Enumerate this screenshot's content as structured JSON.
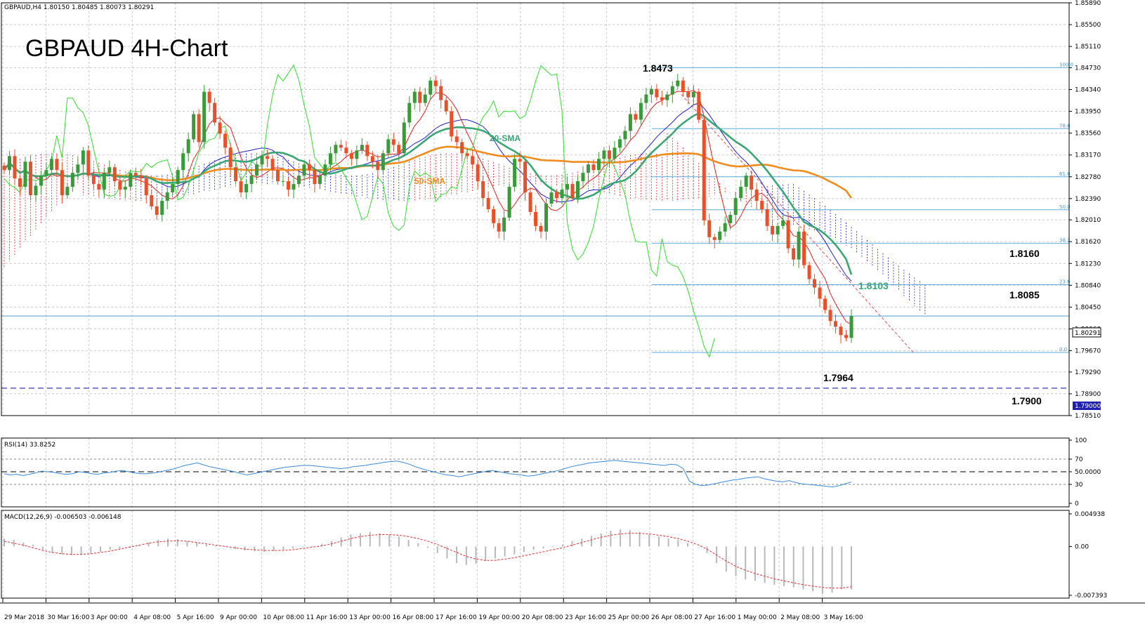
{
  "header": {
    "symbol_info": "GBPAUD,H4  1.80150 1.80485 1.80073 1.80291",
    "title": "GBPAUD 4H-Chart"
  },
  "colors": {
    "bull": "#3a9a3a",
    "bear": "#e8502a",
    "sma20": "#3aa675",
    "sma50": "#f08c1e",
    "tenkan": "#e02020",
    "kijun": "#2020d0",
    "chikou": "#33dd33",
    "fib": "#5aaedc",
    "rsi": "#3a8ad6",
    "macd_hist": "#b8b8b8",
    "macd_signal": "#e03030",
    "level_1790": "#2020b0"
  },
  "annotations": {
    "high": "1.8473",
    "low": "1.7964",
    "sma20_value": "1.8103",
    "level_a": "1.8160",
    "level_b": "1.8085",
    "level_c": "1.7900",
    "sma20_label": "20-SMA",
    "sma50_label": "50-SMA",
    "current_price_box": "1.80291",
    "support_box": "1.79000"
  },
  "fib_levels": [
    {
      "label": "100.0",
      "price": 1.8473
    },
    {
      "label": "78.6",
      "price": 1.8364
    },
    {
      "label": "61.6",
      "price": 1.8278
    },
    {
      "label": "50.0",
      "price": 1.8219
    },
    {
      "label": "38.2",
      "price": 1.8159
    },
    {
      "label": "23.6",
      "price": 1.8085
    },
    {
      "label": "0.0",
      "price": 1.7964
    }
  ],
  "chart_data": {
    "type": "candlestick",
    "symbol": "GBPAUD",
    "timeframe": "H4",
    "y_axis": {
      "range": [
        1.7851,
        1.8589
      ],
      "ticks": [
        "1.85890",
        "1.85500",
        "1.85110",
        "1.84730",
        "1.84340",
        "1.83950",
        "1.83560",
        "1.83170",
        "1.82780",
        "1.82390",
        "1.82010",
        "1.81620",
        "1.81230",
        "1.80840",
        "1.80450",
        "1.80060",
        "1.79670",
        "1.79290",
        "1.78900",
        "1.78510"
      ]
    },
    "x_labels": [
      "29 Mar 2018",
      "30 Mar 16:00",
      "3 Apr 00:00",
      "4 Apr 08:00",
      "5 Apr 16:00",
      "9 Apr 00:00",
      "10 Apr 08:00",
      "11 Apr 16:00",
      "13 Apr 00:00",
      "16 Apr 08:00",
      "17 Apr 16:00",
      "19 Apr 00:00",
      "20 Apr 08:00",
      "23 Apr 16:00",
      "25 Apr 00:00",
      "26 Apr 08:00",
      "27 Apr 16:00",
      "1 May 00:00",
      "2 May 08:00",
      "3 May 16:00"
    ],
    "closes": [
      1.829,
      1.8315,
      1.8275,
      1.826,
      1.8305,
      1.8245,
      1.8262,
      1.828,
      1.829,
      1.831,
      1.829,
      1.8245,
      1.826,
      1.8285,
      1.83,
      1.8325,
      1.828,
      1.8265,
      1.8255,
      1.8285,
      1.8295,
      1.827,
      1.8255,
      1.826,
      1.8285,
      1.828,
      1.8275,
      1.8245,
      1.8225,
      1.821,
      1.8235,
      1.825,
      1.8265,
      1.829,
      1.832,
      1.8345,
      1.839,
      1.834,
      1.843,
      1.841,
      1.8375,
      1.8355,
      1.833,
      1.8295,
      1.827,
      1.825,
      1.8265,
      1.828,
      1.83,
      1.8315,
      1.831,
      1.829,
      1.827,
      1.827,
      1.8255,
      1.8265,
      1.828,
      1.83,
      1.829,
      1.8265,
      1.828,
      1.83,
      1.832,
      1.8335,
      1.833,
      1.832,
      1.831,
      1.8325,
      1.8335,
      1.8315,
      1.8305,
      1.829,
      1.832,
      1.8345,
      1.8335,
      1.832,
      1.8375,
      1.841,
      1.843,
      1.841,
      1.8425,
      1.845,
      1.844,
      1.8415,
      1.8395,
      1.835,
      1.834,
      1.832,
      1.8315,
      1.83,
      1.827,
      1.824,
      1.822,
      1.8195,
      1.818,
      1.8205,
      1.826,
      1.831,
      1.8305,
      1.825,
      1.8215,
      1.819,
      1.818,
      1.823,
      1.825,
      1.824,
      1.8255,
      1.8265,
      1.824,
      1.827,
      1.8285,
      1.83,
      1.829,
      1.831,
      1.8325,
      1.831,
      1.833,
      1.8345,
      1.836,
      1.839,
      1.838,
      1.841,
      1.8425,
      1.8435,
      1.842,
      1.8415,
      1.8425,
      1.844,
      1.845,
      1.843,
      1.842,
      1.843,
      1.838,
      1.82,
      1.817,
      1.8165,
      1.818,
      1.8195,
      1.821,
      1.824,
      1.826,
      1.828,
      1.8255,
      1.8235,
      1.822,
      1.819,
      1.8175,
      1.819,
      1.82,
      1.815,
      1.813,
      1.818,
      1.812,
      1.8095,
      1.808,
      1.806,
      1.804,
      1.802,
      1.801,
      1.7995,
      1.799,
      1.8029
    ],
    "moving_averages": {
      "sma20_end": 1.8103,
      "sma50_end": 1.824
    },
    "indicators": {
      "rsi": {
        "label": "RSI(14) 33.8252",
        "ticks": [
          "100",
          "70",
          "50.0000",
          "30",
          "0"
        ],
        "values": [
          47,
          45,
          46,
          44,
          46,
          48,
          51,
          50,
          49,
          47,
          46,
          47,
          50,
          49,
          47,
          46,
          48,
          49,
          51,
          52,
          50,
          48,
          47,
          47,
          48,
          50,
          52,
          54,
          57,
          60,
          62,
          64,
          61,
          58,
          56,
          54,
          52,
          50,
          47,
          45,
          47,
          49,
          51,
          53,
          55,
          57,
          58,
          59,
          60,
          60,
          59,
          58,
          57,
          56,
          55,
          56,
          58,
          59,
          60,
          62,
          63,
          65,
          66,
          67,
          65,
          62,
          58,
          55,
          52,
          50,
          47,
          45,
          44,
          42,
          44,
          46,
          48,
          50,
          52,
          51,
          49,
          47,
          46,
          45,
          43,
          44,
          46,
          48,
          50,
          52,
          55,
          58,
          60,
          62,
          64,
          65,
          66,
          67,
          68,
          67,
          66,
          65,
          64,
          63,
          62,
          61,
          60,
          62,
          61,
          55,
          35,
          30,
          28,
          29,
          31,
          33,
          35,
          37,
          38,
          40,
          41,
          42,
          39,
          37,
          35,
          34,
          36,
          33,
          31,
          30,
          29,
          28,
          27,
          26,
          28,
          31,
          33.8252
        ]
      },
      "macd": {
        "label": "MACD(12,26,9) -0.006503 -0.006148",
        "ticks": [
          "0.004938",
          "0.00",
          "-0.007393"
        ],
        "histogram": [
          0.0012,
          0.001,
          0.0006,
          0.0003,
          -0.0005,
          -0.001,
          -0.0012,
          -0.0013,
          -0.0012,
          -0.001,
          -0.0008,
          -0.0005,
          -0.0003,
          -0.0002,
          0.0002,
          0.0006,
          0.001,
          0.0012,
          0.0011,
          0.0008,
          0.0006,
          0.0003,
          0.0001,
          -0.0001,
          -0.0004,
          -0.0006,
          -0.0007,
          -0.0008,
          -0.0007,
          -0.0005,
          -0.0003,
          -0.0001,
          0.0001,
          0.0004,
          0.0008,
          0.0014,
          0.0018,
          0.002,
          0.0022,
          0.002,
          0.0018,
          0.0015,
          0.001,
          0.0005,
          -0.0002,
          -0.001,
          -0.0018,
          -0.0025,
          -0.0028,
          -0.0026,
          -0.0022,
          -0.0018,
          -0.0015,
          -0.0012,
          -0.0008,
          -0.0005,
          -0.0003,
          -0.0001,
          0.0003,
          0.0008,
          0.0012,
          0.0016,
          0.002,
          0.0024,
          0.0026,
          0.0025,
          0.0022,
          0.0018,
          0.0015,
          0.0012,
          0.001,
          0.0005,
          0.0,
          -0.001,
          -0.0025,
          -0.0038,
          -0.0045,
          -0.005,
          -0.0052,
          -0.0055,
          -0.0058,
          -0.006,
          -0.0062,
          -0.0065,
          -0.0068,
          -0.0072,
          -0.007,
          -0.0065,
          -0.0065
        ],
        "signal": [
          0.0008,
          0.0005,
          0.0002,
          -0.0002,
          -0.0006,
          -0.0009,
          -0.0011,
          -0.0012,
          -0.0012,
          -0.0011,
          -0.0009,
          -0.0007,
          -0.0004,
          -0.0001,
          0.0002,
          0.0005,
          0.0007,
          0.0008,
          0.0009,
          0.0008,
          0.0006,
          0.0004,
          0.0002,
          0.0,
          -0.0002,
          -0.0004,
          -0.0005,
          -0.0006,
          -0.0006,
          -0.0006,
          -0.0005,
          -0.0003,
          -0.0001,
          0.0001,
          0.0004,
          0.0008,
          0.0012,
          0.0015,
          0.0017,
          0.0018,
          0.0018,
          0.0017,
          0.0015,
          0.0012,
          0.0008,
          0.0003,
          -0.0003,
          -0.0009,
          -0.0015,
          -0.0019,
          -0.0021,
          -0.0021,
          -0.0019,
          -0.0017,
          -0.0014,
          -0.0011,
          -0.0008,
          -0.0005,
          -0.0002,
          0.0002,
          0.0006,
          0.001,
          0.0014,
          0.0017,
          0.0019,
          0.002,
          0.002,
          0.0019,
          0.0017,
          0.0015,
          0.0012,
          0.0008,
          0.0003,
          -0.0004,
          -0.0013,
          -0.0022,
          -0.003,
          -0.0036,
          -0.0041,
          -0.0045,
          -0.0049,
          -0.0052,
          -0.0055,
          -0.0058,
          -0.006,
          -0.0062,
          -0.0063,
          -0.0063,
          -0.0061
        ]
      }
    }
  }
}
